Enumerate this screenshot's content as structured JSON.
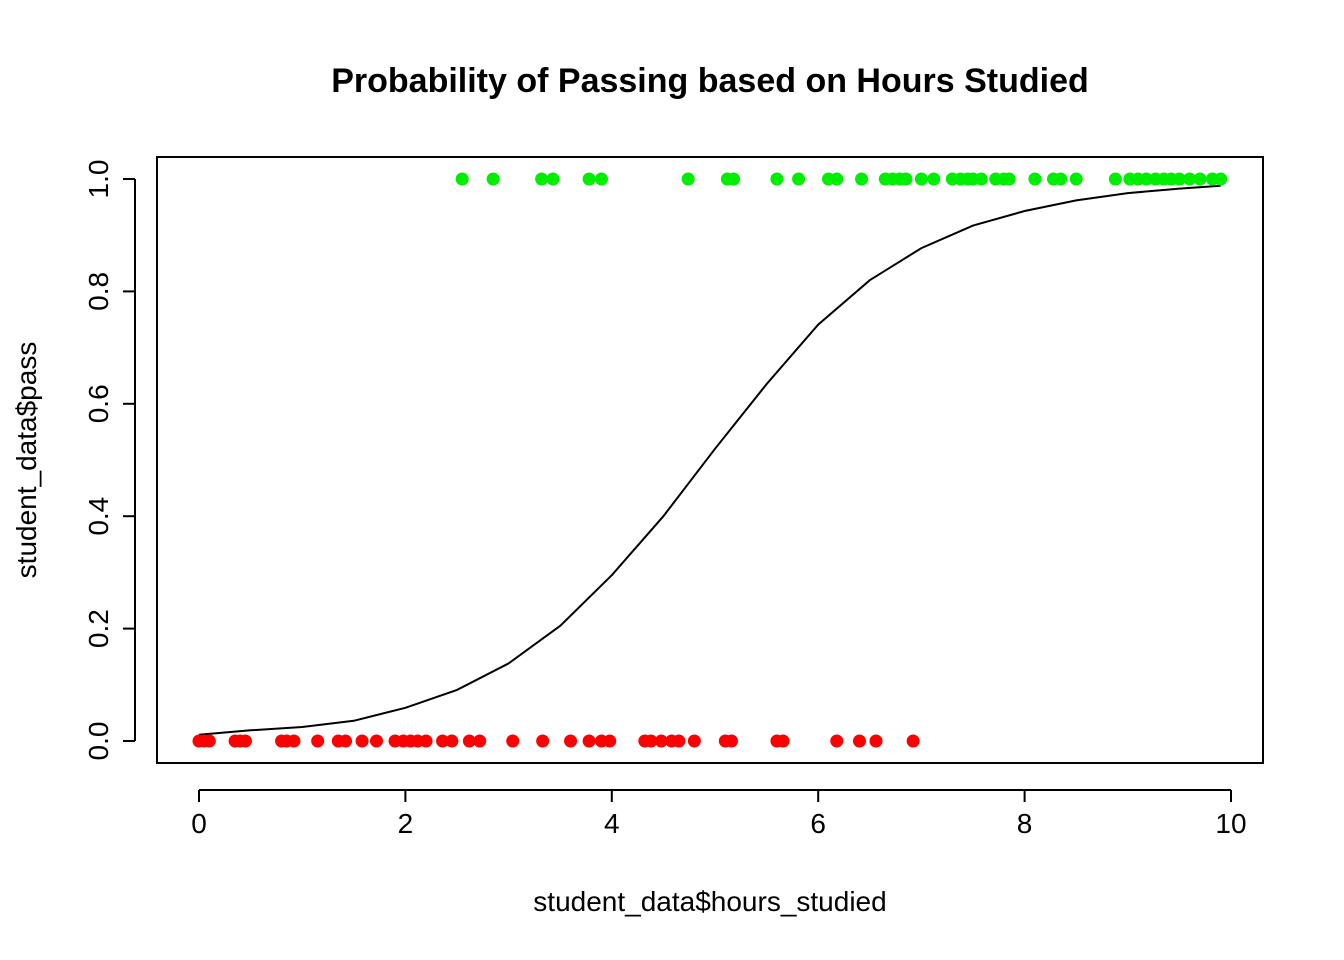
{
  "chart_data": {
    "type": "scatter",
    "title": "Probability of Passing based on Hours Studied",
    "xlabel": "student_data$hours_studied",
    "ylabel": "student_data$pass",
    "xlim": [
      0,
      10
    ],
    "ylim": [
      0,
      1
    ],
    "x_ticks": [
      0,
      2,
      4,
      6,
      8,
      10
    ],
    "x_tick_labels": [
      "0",
      "2",
      "4",
      "6",
      "8",
      "10"
    ],
    "y_ticks": [
      0,
      0.2,
      0.4,
      0.6,
      0.8,
      1.0
    ],
    "y_tick_labels": [
      "0.0",
      "0.2",
      "0.4",
      "0.6",
      "0.8",
      "1.0"
    ],
    "grid": false,
    "legend": "none",
    "series": [
      {
        "color": "#00ee00",
        "y_value": 1,
        "x": [
          2.55,
          2.85,
          3.32,
          3.43,
          3.78,
          3.9,
          4.74,
          5.12,
          5.18,
          5.6,
          5.81,
          6.1,
          6.18,
          6.42,
          6.65,
          6.72,
          6.79,
          6.85,
          7.0,
          7.12,
          7.3,
          7.38,
          7.45,
          7.5,
          7.58,
          7.72,
          7.8,
          7.85,
          8.1,
          8.28,
          8.35,
          8.5,
          8.88,
          9.02,
          9.1,
          9.18,
          9.27,
          9.35,
          9.42,
          9.5,
          9.6,
          9.7,
          9.82,
          9.9
        ]
      },
      {
        "color": "#ff0000",
        "y_value": 0,
        "x": [
          0.0,
          0.05,
          0.1,
          0.35,
          0.4,
          0.45,
          0.8,
          0.85,
          0.92,
          1.15,
          1.35,
          1.42,
          1.58,
          1.72,
          1.9,
          1.98,
          2.05,
          2.12,
          2.2,
          2.36,
          2.45,
          2.62,
          2.72,
          3.04,
          3.33,
          3.6,
          3.78,
          3.9,
          3.98,
          4.32,
          4.38,
          4.48,
          4.58,
          4.65,
          4.8,
          5.1,
          5.16,
          5.6,
          5.66,
          6.18,
          6.4,
          6.56,
          6.92
        ]
      }
    ],
    "curve": {
      "type": "logistic",
      "x": [
        0.0,
        0.5,
        1.0,
        1.5,
        2.0,
        2.5,
        3.0,
        3.5,
        4.0,
        4.5,
        5.0,
        5.5,
        6.0,
        6.5,
        7.0,
        7.5,
        8.0,
        8.5,
        9.0,
        9.5,
        9.9
      ],
      "y": [
        0.011,
        0.019,
        0.025,
        0.036,
        0.059,
        0.091,
        0.138,
        0.205,
        0.295,
        0.4,
        0.52,
        0.635,
        0.741,
        0.82,
        0.877,
        0.917,
        0.943,
        0.962,
        0.975,
        0.983,
        0.988
      ]
    }
  }
}
